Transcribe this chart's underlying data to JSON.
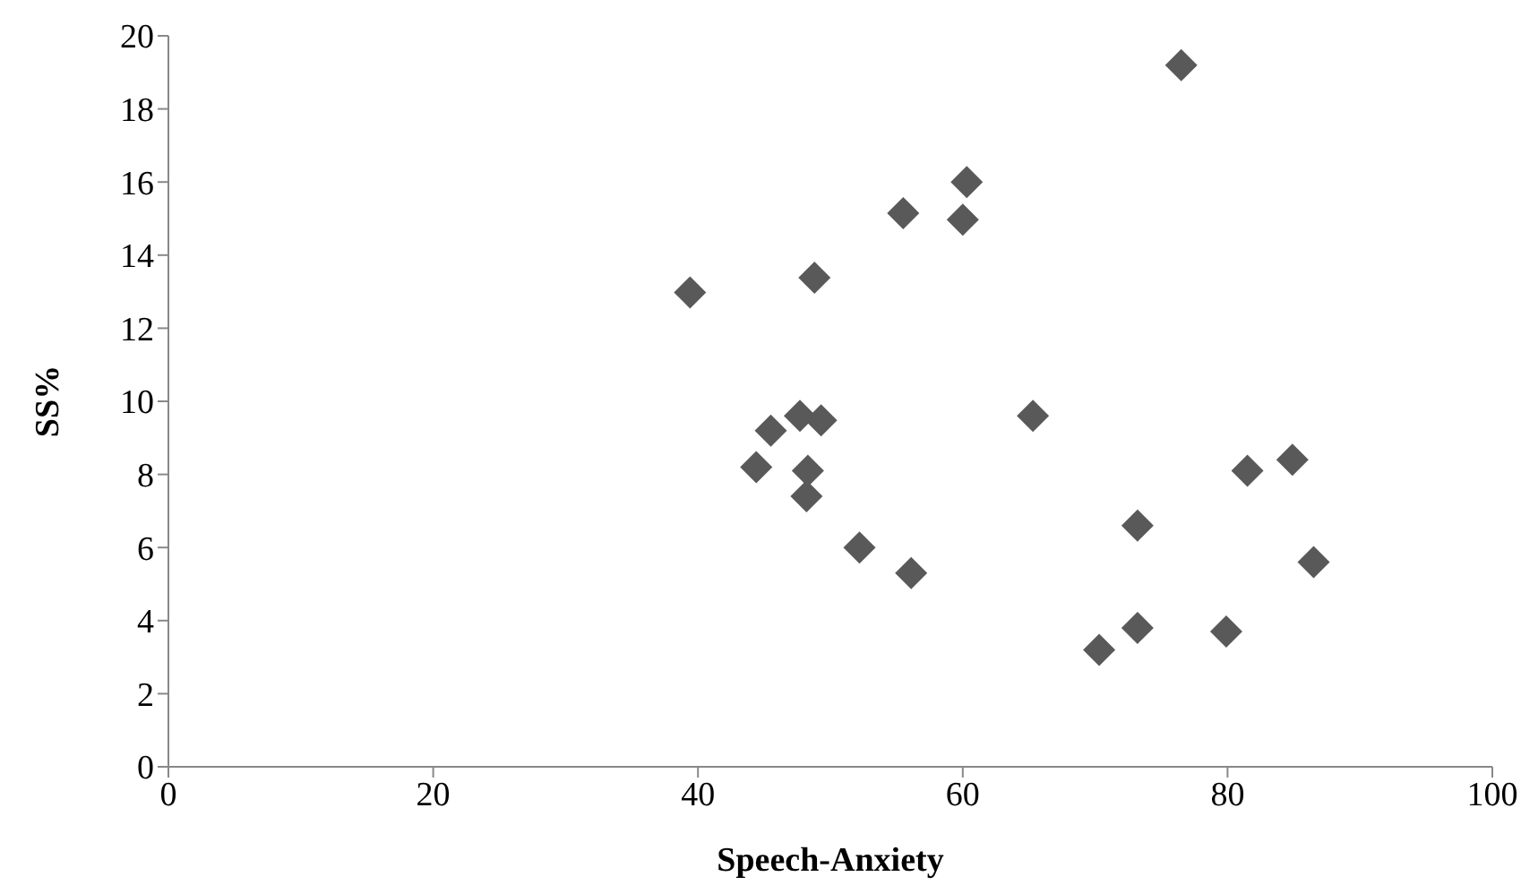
{
  "chart_data": {
    "type": "scatter",
    "xlabel": "Speech-Anxiety",
    "ylabel": "SS%",
    "xlim": [
      0,
      100
    ],
    "xticks": [
      0,
      20,
      40,
      60,
      80,
      100
    ],
    "ylim": [
      0,
      20
    ],
    "yticks": [
      0,
      2,
      4,
      6,
      8,
      10,
      12,
      14,
      16,
      18,
      20
    ],
    "grid": false,
    "marker": "diamond",
    "series": [
      {
        "color": "#595959",
        "x": [
          76.5,
          60.3,
          55.5,
          60.0,
          39.4,
          48.8,
          45.5,
          47.7,
          49.3,
          65.3,
          44.4,
          48.3,
          48.2,
          52.2,
          56.1,
          73.2,
          73.2,
          70.3,
          81.5,
          84.9,
          86.5,
          79.9
        ],
        "values": [
          19.2,
          16.0,
          15.15,
          14.97,
          12.98,
          13.38,
          9.2,
          9.6,
          9.48,
          9.6,
          8.2,
          8.1,
          7.4,
          6.0,
          5.3,
          6.6,
          3.8,
          3.2,
          8.1,
          8.4,
          5.6,
          3.7
        ]
      }
    ]
  }
}
